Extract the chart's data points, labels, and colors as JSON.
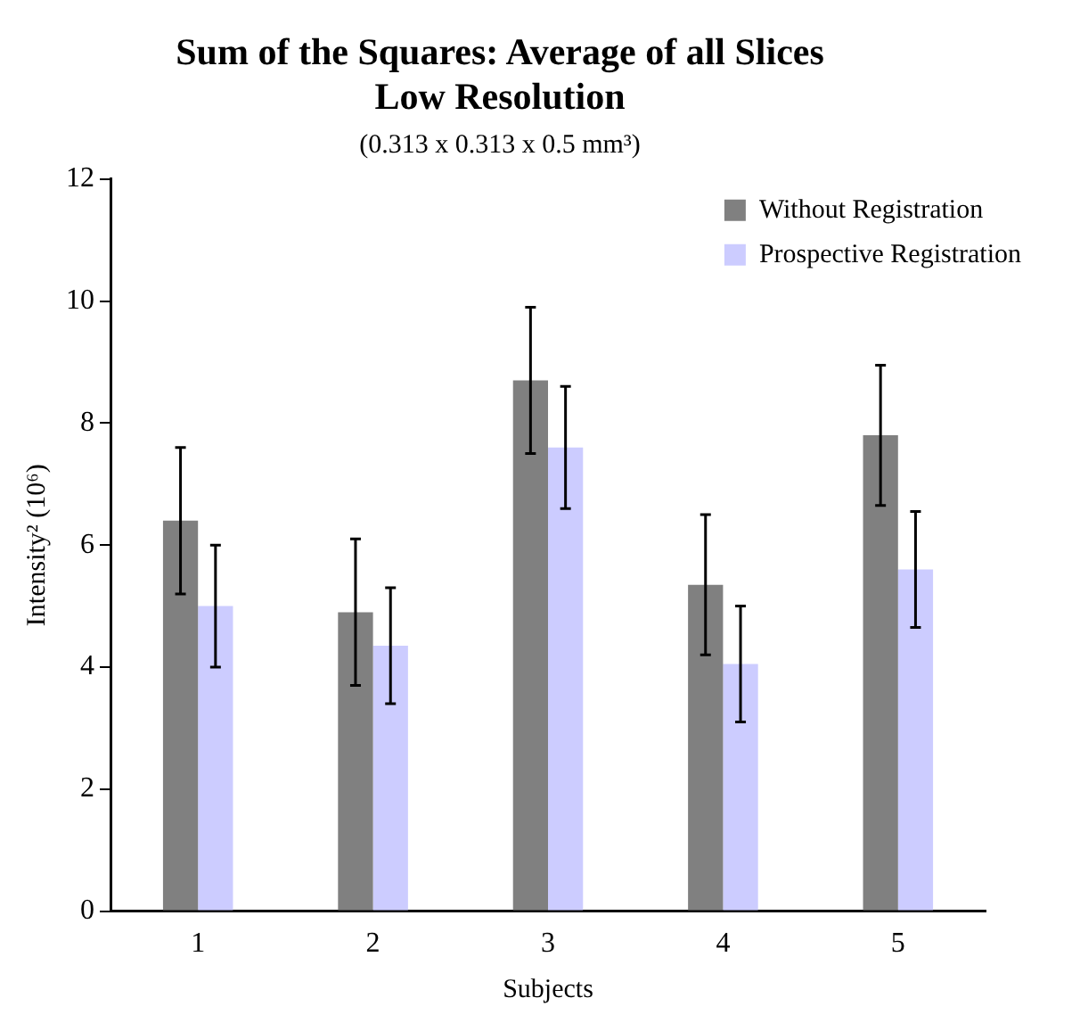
{
  "chart_data": {
    "type": "bar",
    "title": "Sum of the Squares: Average of all Slices\nLow Resolution",
    "subtitle": "(0.313 x 0.313 x 0.5 mm³)",
    "xlabel": "Subjects",
    "ylabel": "Intensity² (10⁶)",
    "categories": [
      "1",
      "2",
      "3",
      "4",
      "5"
    ],
    "series": [
      {
        "name": "Without Registration",
        "color": "#808080",
        "values": [
          6.4,
          4.9,
          8.7,
          5.35,
          7.8
        ],
        "errors": [
          1.2,
          1.2,
          1.2,
          1.15,
          1.15
        ]
      },
      {
        "name": "Prospective Registration",
        "color": "#ccccff",
        "values": [
          5.0,
          4.35,
          7.6,
          4.05,
          5.6
        ],
        "errors": [
          1.0,
          0.95,
          1.0,
          0.95,
          0.95
        ]
      }
    ],
    "ylim": [
      0,
      12
    ],
    "yticks": [
      0,
      2,
      4,
      6,
      8,
      10,
      12
    ],
    "grid": false,
    "legend": "top right"
  }
}
